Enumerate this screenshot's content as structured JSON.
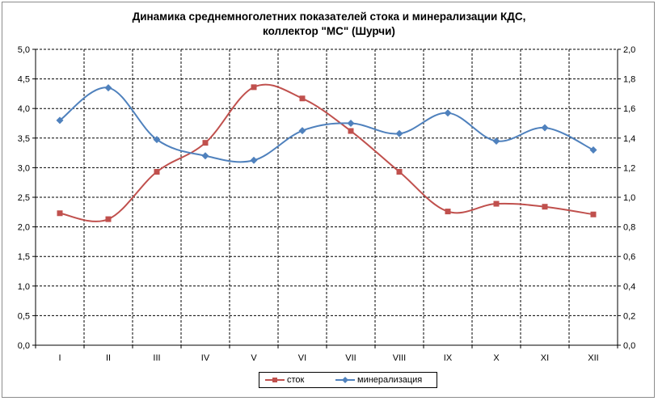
{
  "chart_data": {
    "type": "line",
    "title_lines": [
      "Динамика среднемноголетних показателей стока и минерализации КДС,",
      "коллектор \"МС\" (Шурчи)"
    ],
    "categories": [
      "I",
      "II",
      "III",
      "IV",
      "V",
      "VI",
      "VII",
      "VIII",
      "IX",
      "X",
      "XI",
      "XII"
    ],
    "y_left": {
      "range": [
        0,
        5
      ],
      "ticks": [
        "0,0",
        "0,5",
        "1,0",
        "1,5",
        "2,0",
        "2,5",
        "3,0",
        "3,5",
        "4,0",
        "4,5",
        "5,0"
      ]
    },
    "y_right": {
      "range": [
        0,
        2
      ],
      "ticks": [
        "0,0",
        "0,2",
        "0,4",
        "0,6",
        "0,8",
        "1,0",
        "1,2",
        "1,4",
        "1,6",
        "1,8",
        "2,0"
      ]
    },
    "grid": true,
    "legend_position": "bottom",
    "series": [
      {
        "name": "сток",
        "axis": "left",
        "color": "#c0504d",
        "marker": "square",
        "values": [
          2.23,
          2.13,
          2.93,
          3.42,
          4.36,
          4.17,
          3.62,
          2.93,
          2.26,
          2.39,
          2.34,
          2.21
        ]
      },
      {
        "name": "минерализация",
        "axis": "right",
        "color": "#4f81bd",
        "marker": "diamond",
        "values": [
          1.52,
          1.74,
          1.39,
          1.28,
          1.25,
          1.45,
          1.5,
          1.43,
          1.57,
          1.38,
          1.47,
          1.32
        ]
      }
    ]
  }
}
